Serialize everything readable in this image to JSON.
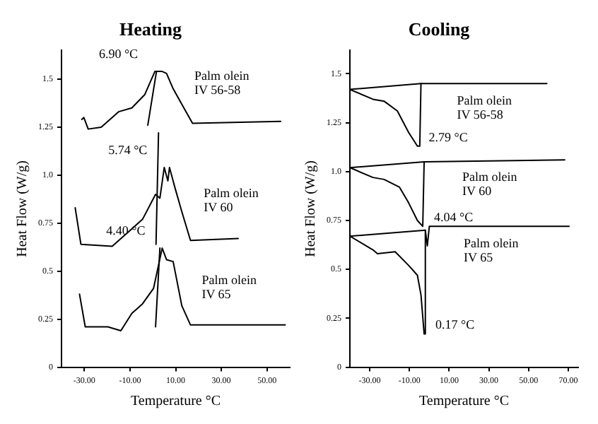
{
  "chart_data": [
    {
      "type": "line",
      "title": "Heating",
      "xlabel": "Temperature °C",
      "ylabel": "Heat Flow (W/g)",
      "xlim": [
        -40,
        60
      ],
      "ylim": [
        0,
        1.65
      ],
      "xticks": [
        {
          "value": -30,
          "label": "-30.00"
        },
        {
          "value": -10,
          "label": "-10.00"
        },
        {
          "value": 10,
          "label": "10.00"
        },
        {
          "value": 30,
          "label": "30.00"
        },
        {
          "value": 50,
          "label": "50.00"
        }
      ],
      "yticks": [
        0,
        0.25,
        0.5,
        0.75,
        {
          "value": 1,
          "label": "1.0"
        },
        1.25,
        1.5
      ],
      "series": [
        {
          "name": "Palm olein IV 56-58",
          "color": "#000000",
          "x": [
            -31.1,
            -30.2,
            -28.3,
            -22.6,
            -15.0,
            -9.2,
            -3.5,
            0.9,
            4.1,
            6.0,
            8.9,
            13.6,
            17.4,
            56
          ],
          "values": [
            1.29,
            1.3,
            1.24,
            1.25,
            1.33,
            1.35,
            1.42,
            1.54,
            1.54,
            1.53,
            1.45,
            1.35,
            1.27,
            1.28
          ]
        },
        {
          "name": "Palm olein IV 60",
          "color": "#000000",
          "x": [
            -34.0,
            -31.5,
            -17.8,
            -10.2,
            -4.5,
            1.2,
            3.1,
            5.0,
            6.6,
            7.3,
            9.8,
            12.7,
            16.5,
            37.4
          ],
          "values": [
            0.83,
            0.64,
            0.63,
            0.71,
            0.77,
            0.9,
            0.88,
            1.04,
            0.97,
            1.04,
            0.93,
            0.81,
            0.66,
            0.67
          ]
        },
        {
          "name": "Palm olein IV 65",
          "color": "#000000",
          "x": [
            -32.1,
            -29.6,
            -19.7,
            -14.0,
            -9.2,
            -4.5,
            0.3,
            4.1,
            6.0,
            8.9,
            12.7,
            16.5,
            58
          ],
          "values": [
            0.38,
            0.21,
            0.21,
            0.19,
            0.28,
            0.33,
            0.41,
            0.62,
            0.56,
            0.55,
            0.32,
            0.22,
            0.22
          ]
        },
        {
          "color": "#000000",
          "x": [
            -2.2,
            1.6
          ],
          "values": [
            1.26,
            1.54
          ]
        },
        {
          "color": "#000000",
          "x": [
            1.4,
            2.5
          ],
          "values": [
            0.64,
            1.22
          ]
        },
        {
          "color": "#000000",
          "x": [
            1.2,
            3.1
          ],
          "values": [
            0.21,
            0.62
          ]
        }
      ],
      "annotations": [
        "6.90 °C",
        "5.74 °C",
        "4.40 °C"
      ]
    },
    {
      "type": "line",
      "title": "Cooling",
      "xlabel": "Temperature °C",
      "ylabel": "Heat Flow (W/g)",
      "xlim": [
        -40,
        75
      ],
      "ylim": [
        0,
        1.62
      ],
      "xticks": [
        {
          "value": -30,
          "label": "-30.00"
        },
        {
          "value": -10,
          "label": "-10.00"
        },
        {
          "value": 10,
          "label": "10.00"
        },
        {
          "value": 30,
          "label": "30.00"
        },
        {
          "value": 50,
          "label": "50.00"
        },
        {
          "value": 70,
          "label": "70.00"
        }
      ],
      "yticks": [
        0,
        0.25,
        0.5,
        0.75,
        {
          "value": 1,
          "label": "1.0"
        },
        1.25,
        1.5
      ],
      "series": [
        {
          "name": "Palm olein IV 56-58",
          "color": "#000000",
          "x": [
            -40,
            -28.4,
            -22.8,
            -16.1,
            -10.4,
            -6.0,
            -4.8,
            -4.2,
            59.2
          ],
          "values": [
            1.42,
            1.37,
            1.36,
            1.31,
            1.2,
            1.13,
            1.13,
            1.45,
            1.45
          ]
        },
        {
          "name": "Palm olein IV 60",
          "color": "#000000",
          "x": [
            -40,
            -28.4,
            -22.8,
            -15.0,
            -10.4,
            -6.0,
            -3.3,
            -2.6,
            68.2
          ],
          "values": [
            1.02,
            0.97,
            0.96,
            0.92,
            0.84,
            0.75,
            0.72,
            1.05,
            1.06
          ]
        },
        {
          "name": "Palm olein IV 65",
          "color": "#000000",
          "x": [
            -40,
            -28.4,
            -26.1,
            -17.2,
            -10.4,
            -6.0,
            -4.2,
            -2.6,
            -2.0,
            -1.0,
            0.0,
            70.4
          ],
          "values": [
            0.67,
            0.6,
            0.58,
            0.59,
            0.52,
            0.47,
            0.37,
            0.17,
            0.7,
            0.62,
            0.72,
            0.72
          ]
        },
        {
          "color": "#000000",
          "x": [
            -40,
            -4.2
          ],
          "values": [
            1.42,
            1.45
          ]
        },
        {
          "color": "#000000",
          "x": [
            -40,
            -2.6
          ],
          "values": [
            1.02,
            1.05
          ]
        },
        {
          "color": "#000000",
          "x": [
            -40,
            -2.0
          ],
          "values": [
            0.67,
            0.7
          ]
        }
      ],
      "annotations": [
        "2.79 °C",
        "4.04 °C",
        "0.17 °C"
      ]
    }
  ]
}
